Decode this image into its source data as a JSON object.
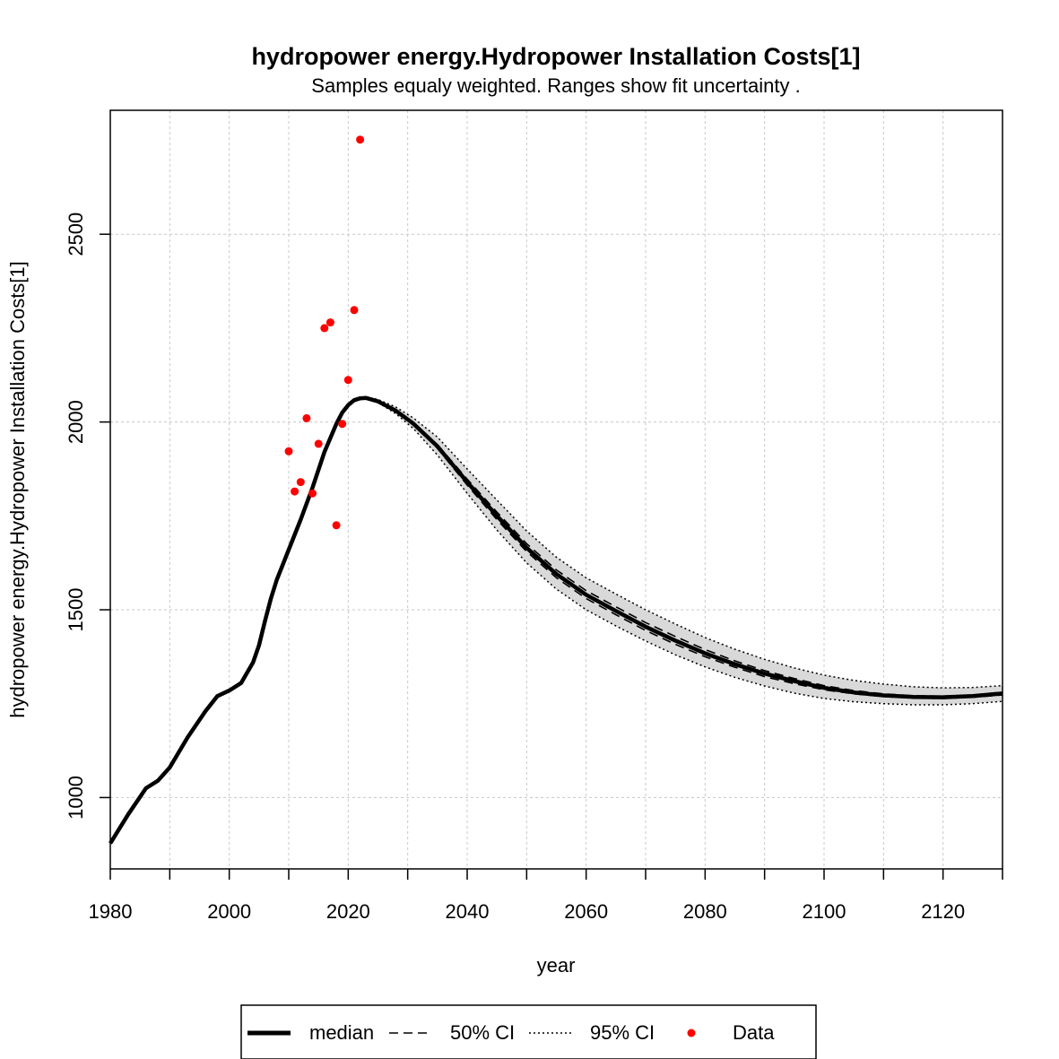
{
  "chart_data": {
    "type": "line",
    "title": "hydropower energy.Hydropower Installation Costs[1]",
    "subtitle": "Samples equaly weighted. Ranges show  fit uncertainty .",
    "xlabel": "year",
    "ylabel": "hydropower energy.Hydropower Installation Costs[1]",
    "xlim": [
      1980,
      2130
    ],
    "ylim": [
      810,
      2830
    ],
    "x_ticks": [
      1980,
      2000,
      2020,
      2040,
      2060,
      2080,
      2100,
      2120
    ],
    "x_minor_ticks": [
      1990,
      2010,
      2030,
      2050,
      2070,
      2090,
      2110,
      2130
    ],
    "y_ticks": [
      1000,
      1500,
      2000,
      2500
    ],
    "grid": true,
    "legend_position": "bottom",
    "colors": {
      "line": "#000000",
      "band": "#d9d9d9",
      "data": "#ff0000",
      "grid": "#c8c8c8"
    },
    "series": [
      {
        "name": "median",
        "style": "solid-thick",
        "x": [
          1980,
          1983,
          1986,
          1988,
          1990,
          1993,
          1996,
          1998,
          2000,
          2002,
          2004,
          2005,
          2006,
          2007,
          2008,
          2010,
          2012,
          2014,
          2016,
          2018,
          2019,
          2020,
          2021,
          2022,
          2023,
          2025,
          2028,
          2031,
          2035,
          2040,
          2045,
          2050,
          2055,
          2060,
          2065,
          2070,
          2075,
          2080,
          2085,
          2090,
          2095,
          2100,
          2105,
          2110,
          2115,
          2120,
          2125,
          2130
        ],
        "y": [
          878,
          955,
          1025,
          1045,
          1080,
          1160,
          1230,
          1270,
          1285,
          1305,
          1360,
          1405,
          1470,
          1530,
          1580,
          1660,
          1740,
          1825,
          1920,
          1995,
          2025,
          2045,
          2058,
          2063,
          2064,
          2055,
          2030,
          1995,
          1935,
          1840,
          1750,
          1665,
          1595,
          1540,
          1497,
          1455,
          1418,
          1384,
          1355,
          1330,
          1310,
          1292,
          1280,
          1272,
          1268,
          1267,
          1270,
          1277
        ]
      },
      {
        "name": "50% CI",
        "style": "dashed",
        "lower": [
          2064,
          2055,
          2030,
          1993,
          1930,
          1832,
          1740,
          1655,
          1585,
          1530,
          1487,
          1445,
          1408,
          1375,
          1347,
          1322,
          1303,
          1287,
          1276,
          1269,
          1265,
          1264,
          1267,
          1273
        ],
        "upper": [
          2065,
          2056,
          2031,
          1997,
          1940,
          1848,
          1760,
          1676,
          1606,
          1551,
          1508,
          1466,
          1429,
          1394,
          1364,
          1338,
          1317,
          1298,
          1285,
          1276,
          1271,
          1270,
          1273,
          1281
        ]
      },
      {
        "name": "95% CI",
        "style": "dotted",
        "x": [
          2023,
          2025,
          2028,
          2031,
          2035,
          2040,
          2045,
          2050,
          2055,
          2060,
          2065,
          2070,
          2075,
          2080,
          2085,
          2090,
          2095,
          2100,
          2105,
          2110,
          2115,
          2120,
          2125,
          2130
        ],
        "lower": [
          2063,
          2052,
          2022,
          1982,
          1912,
          1810,
          1712,
          1625,
          1555,
          1500,
          1457,
          1417,
          1380,
          1348,
          1320,
          1297,
          1278,
          1264,
          1255,
          1250,
          1247,
          1247,
          1250,
          1256
        ],
        "upper": [
          2067,
          2060,
          2040,
          2010,
          1960,
          1875,
          1792,
          1710,
          1640,
          1585,
          1542,
          1500,
          1462,
          1426,
          1395,
          1368,
          1345,
          1326,
          1312,
          1302,
          1295,
          1292,
          1293,
          1298
        ]
      },
      {
        "name": "Data",
        "style": "points",
        "x": [
          2010,
          2011,
          2012,
          2013,
          2014,
          2015,
          2016,
          2017,
          2018,
          2019,
          2020,
          2021,
          2022
        ],
        "y": [
          1922,
          1815,
          1840,
          2010,
          1810,
          1942,
          2250,
          2265,
          1725,
          1995,
          2112,
          2298,
          2752
        ]
      }
    ]
  }
}
